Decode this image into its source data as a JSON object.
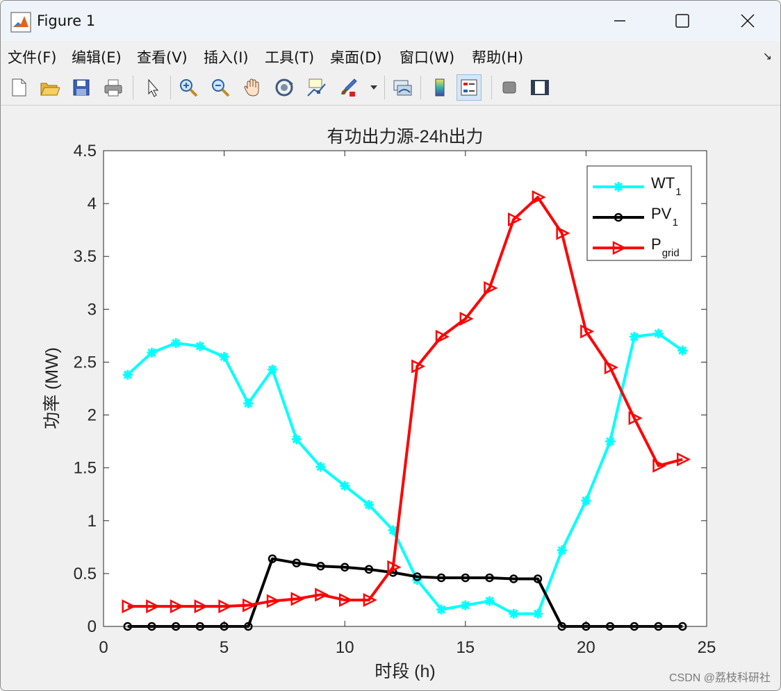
{
  "window": {
    "title": "Figure 1"
  },
  "menu": [
    "文件(F)",
    "编辑(E)",
    "查看(V)",
    "插入(I)",
    "工具(T)",
    "桌面(D)",
    "窗口(W)",
    "帮助(H)"
  ],
  "toolbar": {
    "icons": [
      "new-figure-icon",
      "open-file-icon",
      "save-icon",
      "print-icon",
      "pointer-icon",
      "zoom-in-icon",
      "zoom-out-icon",
      "pan-icon",
      "rotate-3d-icon",
      "data-cursor-icon",
      "brush-icon",
      "link-plot-icon",
      "colorbar-icon",
      "legend-icon",
      "hide-plot-tools-icon",
      "show-plot-tools-icon"
    ]
  },
  "watermark": "CSDN @荔枝科研社",
  "chart_data": {
    "type": "line",
    "title": "有功出力源-24h出力",
    "xlabel": "时段 (h)",
    "ylabel": "功率 (MW)",
    "xlim": [
      0,
      25
    ],
    "ylim": [
      0,
      4.5
    ],
    "xticks": [
      "0",
      "5",
      "10",
      "15",
      "20",
      "25"
    ],
    "yticks": [
      "0",
      "0.5",
      "1",
      "1.5",
      "2",
      "2.5",
      "3",
      "3.5",
      "4",
      "4.5"
    ],
    "legend_position": "top-right",
    "x": [
      1,
      2,
      3,
      4,
      5,
      6,
      7,
      8,
      9,
      10,
      11,
      12,
      13,
      14,
      15,
      16,
      17,
      18,
      19,
      20,
      21,
      22,
      23,
      24
    ],
    "series": [
      {
        "name": "WT",
        "sub": "1",
        "color": "#00ffff",
        "marker": "star",
        "values": [
          2.38,
          2.59,
          2.68,
          2.65,
          2.55,
          2.11,
          2.43,
          1.77,
          1.51,
          1.33,
          1.15,
          0.91,
          0.44,
          0.16,
          0.2,
          0.24,
          0.12,
          0.12,
          0.72,
          1.19,
          1.75,
          2.74,
          2.77,
          2.61
        ]
      },
      {
        "name": "PV",
        "sub": "1",
        "color": "#000000",
        "marker": "circle",
        "values": [
          0,
          0,
          0,
          0,
          0,
          0,
          0.64,
          0.6,
          0.57,
          0.56,
          0.54,
          0.51,
          0.47,
          0.46,
          0.46,
          0.46,
          0.45,
          0.45,
          0,
          0,
          0,
          0,
          0,
          0
        ]
      },
      {
        "name": "P",
        "sub": "grid",
        "color": "#ff0000",
        "marker": "triangle-right",
        "values": [
          0.19,
          0.19,
          0.19,
          0.19,
          0.19,
          0.2,
          0.24,
          0.26,
          0.3,
          0.25,
          0.25,
          0.56,
          2.46,
          2.74,
          2.91,
          3.2,
          3.85,
          4.06,
          3.72,
          2.79,
          2.45,
          1.97,
          1.52,
          1.58
        ]
      }
    ]
  }
}
